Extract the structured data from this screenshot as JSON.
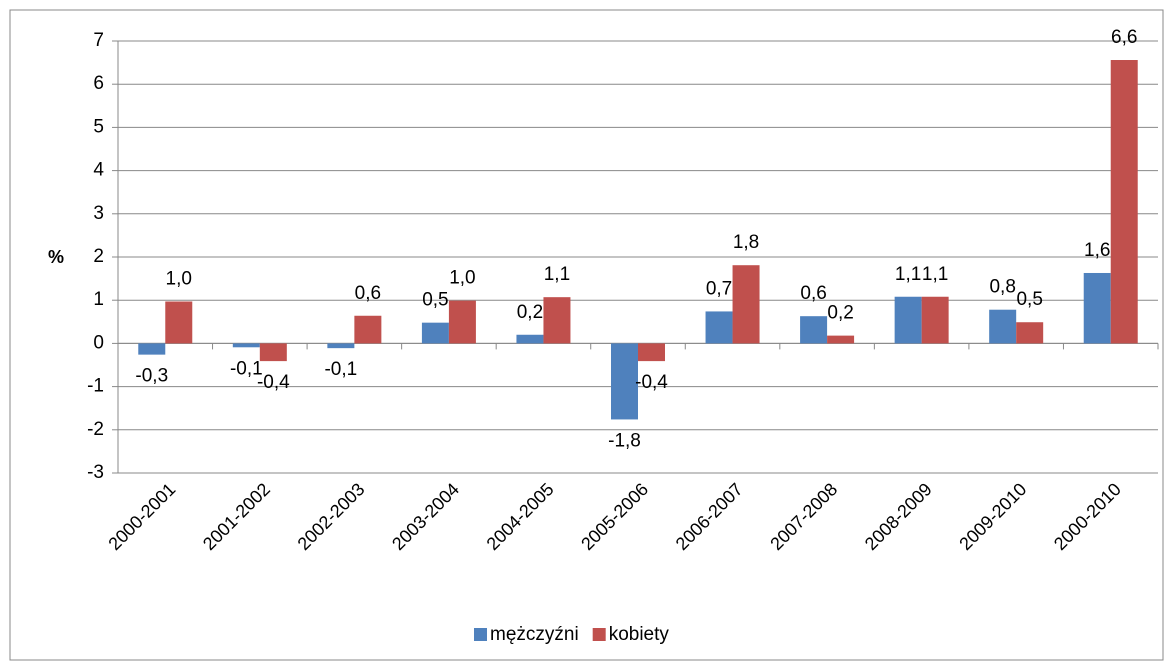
{
  "chart_data": {
    "type": "bar",
    "y_label": "%",
    "categories": [
      "2000-2001",
      "2001-2002",
      "2002-2003",
      "2003-2004",
      "2004-2005",
      "2005-2006",
      "2006-2007",
      "2007-2008",
      "2008-2009",
      "2009-2010",
      "2000-2010"
    ],
    "series": [
      {
        "name": "mężczyźni",
        "color": "#4f81bd",
        "values": [
          -0.26,
          -0.09,
          -0.11,
          0.48,
          0.2,
          -1.76,
          0.74,
          0.63,
          1.08,
          0.78,
          1.63
        ],
        "value_labels": [
          "-0,3",
          "-0,1",
          "-0,1",
          "0,5",
          "0,2",
          "-1,8",
          "0,7",
          "0,6",
          "1,1",
          "0,8",
          "1,6"
        ]
      },
      {
        "name": "kobiety",
        "color": "#c0504d",
        "values": [
          0.97,
          -0.41,
          0.64,
          0.99,
          1.07,
          -0.41,
          1.81,
          0.18,
          1.08,
          0.49,
          6.56
        ],
        "value_labels": [
          "1,0",
          "-0,4",
          "0,6",
          "1,0",
          "1,1",
          "-0,4",
          "1,8",
          "0,2",
          "1,1",
          "0,5",
          "6,6"
        ]
      }
    ],
    "ylim": [
      -3,
      7
    ],
    "yticks": [
      -3,
      -2,
      -1,
      0,
      1,
      2,
      3,
      4,
      5,
      6,
      7
    ],
    "grid": true,
    "legend": "bottom"
  }
}
